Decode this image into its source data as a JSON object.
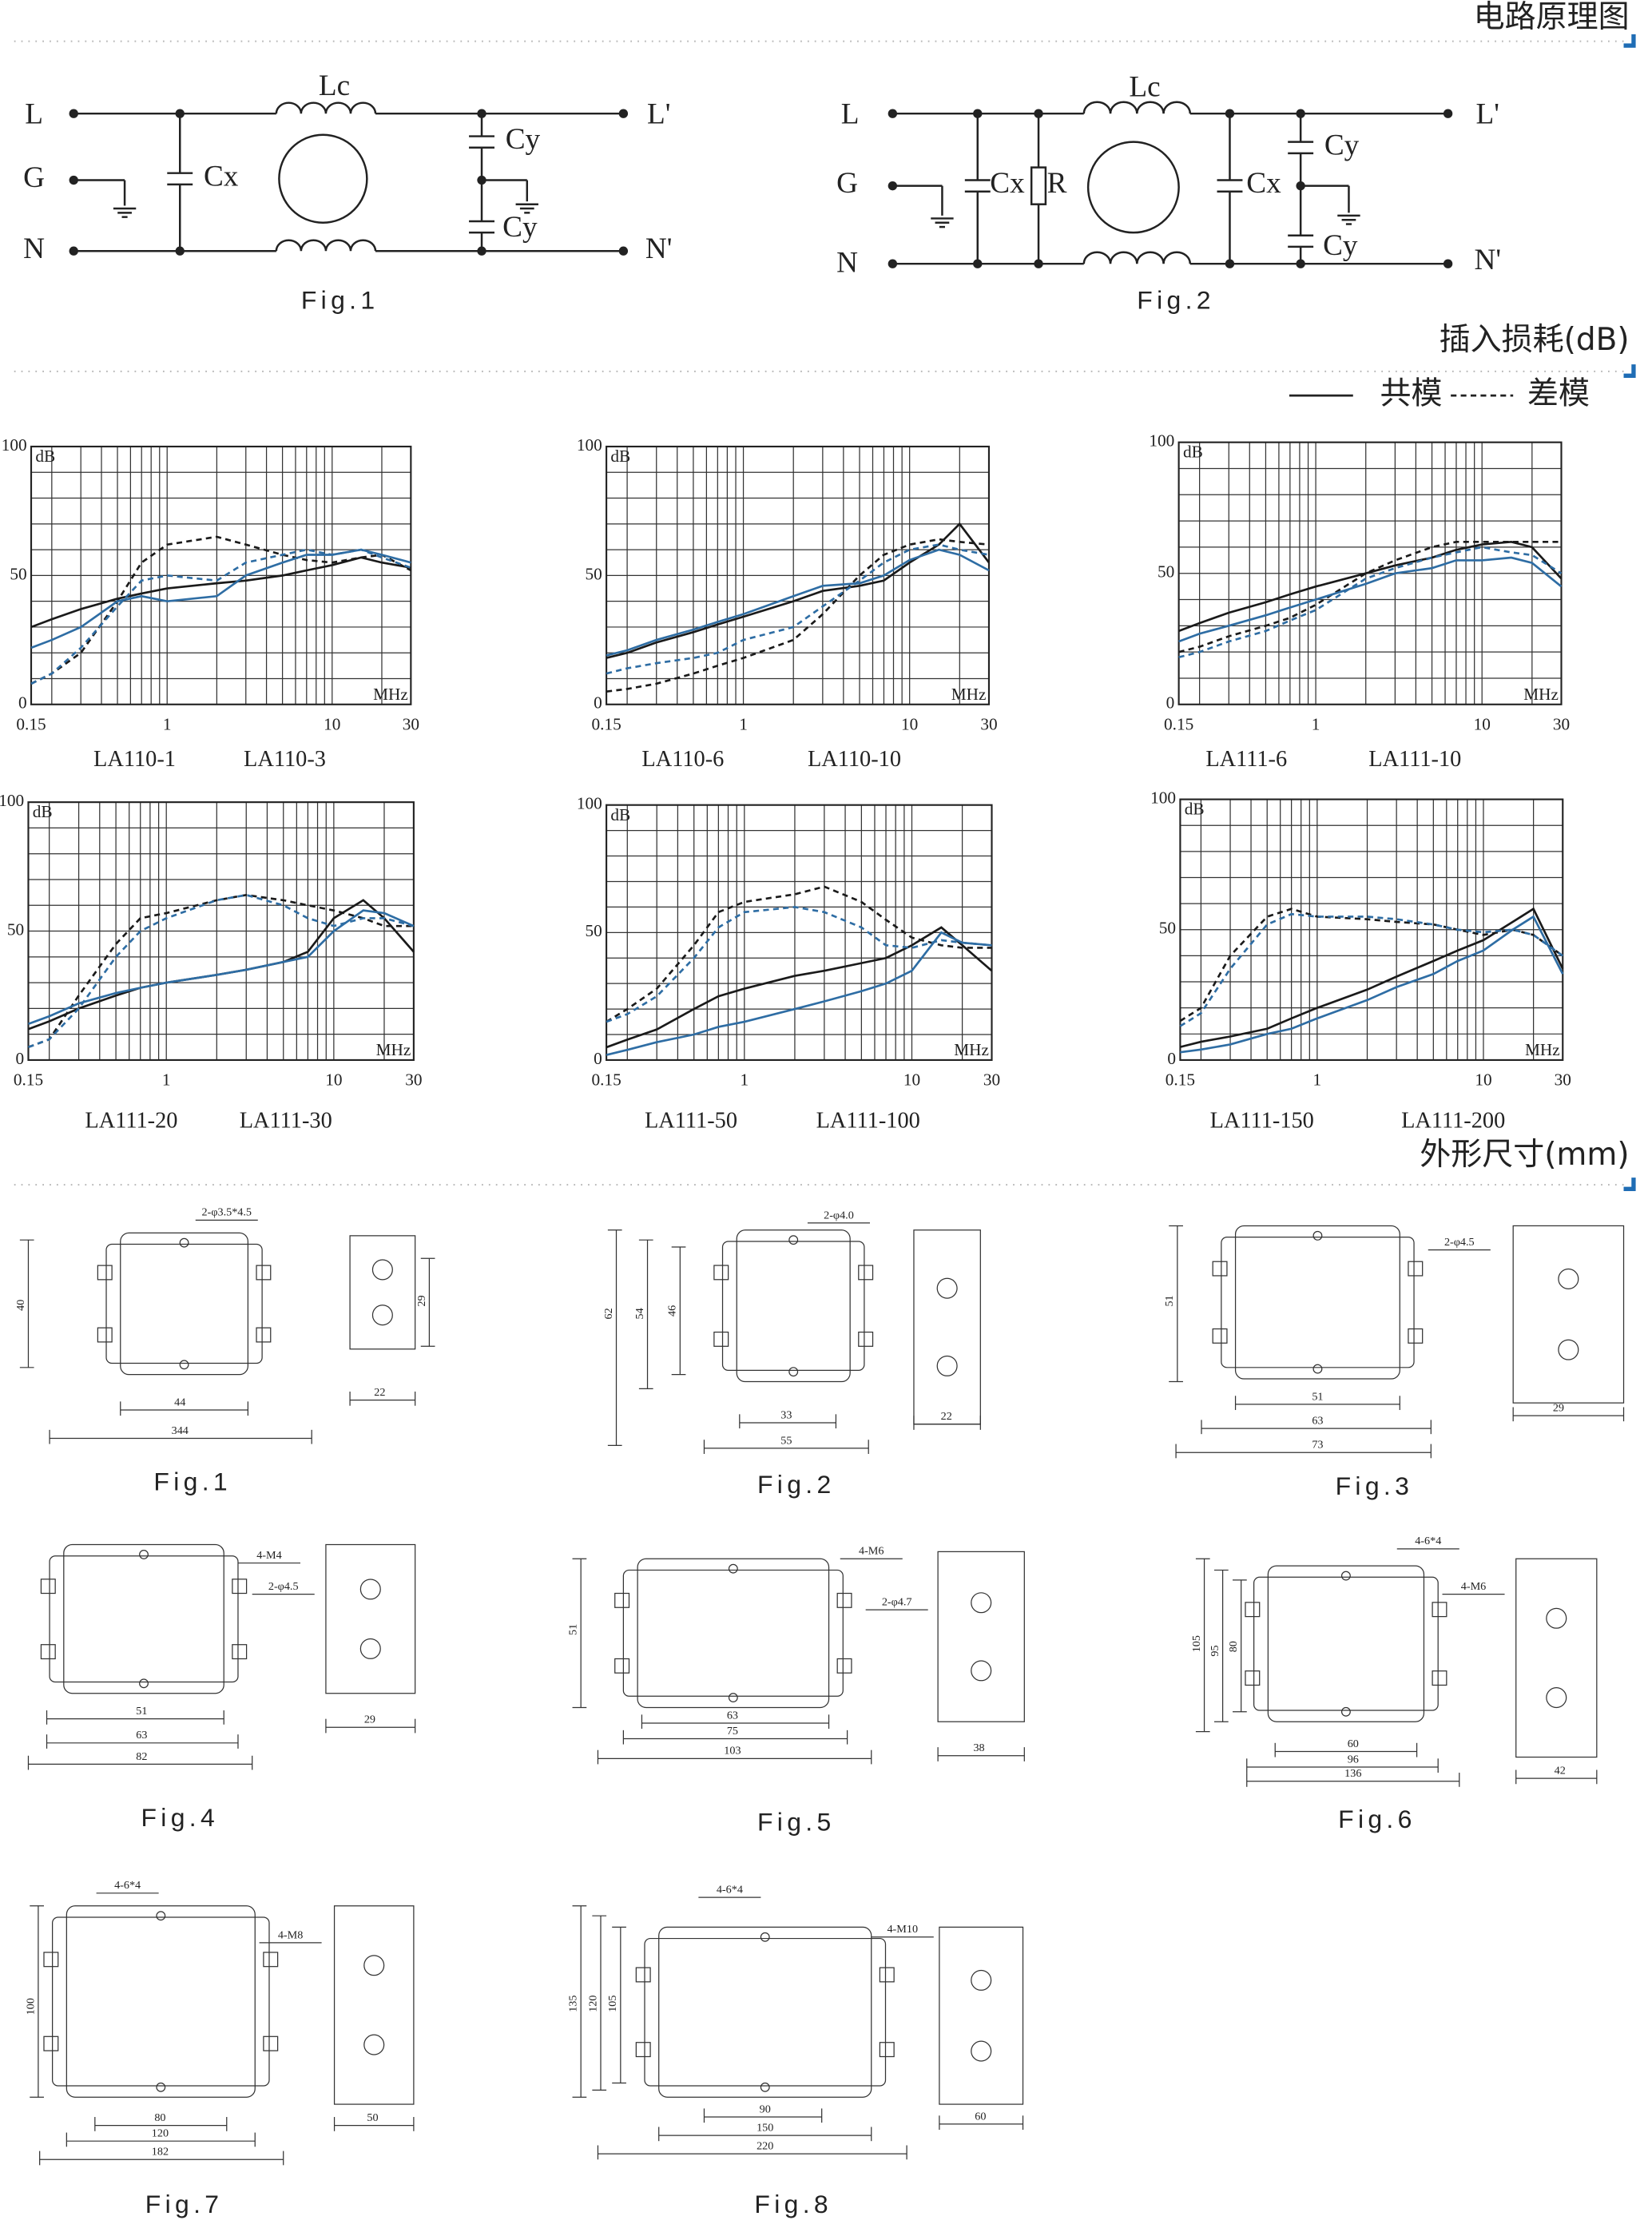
{
  "sections": {
    "circuit": "电路原理图",
    "insertion_loss": "插入损耗(dB)",
    "dimensions": "外形尺寸(mm)"
  },
  "legend": {
    "common_mode": "共模",
    "differential_mode": "差模"
  },
  "circuits": [
    {
      "caption": "Fig.1",
      "labels": [
        "L",
        "G",
        "N",
        "L'",
        "N'",
        "Lc",
        "Cx",
        "Cy",
        "Cy"
      ]
    },
    {
      "caption": "Fig.2",
      "labels": [
        "L",
        "G",
        "N",
        "L'",
        "N'",
        "Lc",
        "Cx",
        "R",
        "Cx",
        "Cy",
        "Cy"
      ]
    }
  ],
  "chart_data": [
    {
      "type": "line",
      "x_scale": "log",
      "y_label": "dB",
      "x_label": "MHz",
      "xlim": [
        0.15,
        30
      ],
      "ylim": [
        0,
        100
      ],
      "xticks": [
        0.15,
        1,
        10,
        30
      ],
      "yticks": [
        0,
        50,
        100
      ],
      "grid": true,
      "x": [
        0.15,
        0.2,
        0.3,
        0.5,
        0.7,
        1,
        2,
        3,
        5,
        7,
        10,
        15,
        20,
        30
      ],
      "series": [
        {
          "name": "LA110-1",
          "color": "#1a1a1a",
          "dashed": false,
          "values": [
            30,
            33,
            37,
            41,
            43,
            45,
            47,
            48,
            50,
            52,
            54,
            57,
            55,
            53
          ]
        },
        {
          "name": "LA110-1",
          "color": "#1a1a1a",
          "dashed": true,
          "values": [
            8,
            12,
            20,
            40,
            55,
            62,
            65,
            62,
            58,
            56,
            55,
            57,
            58,
            52
          ]
        },
        {
          "name": "LA110-3",
          "color": "#2e6da4",
          "dashed": false,
          "values": [
            22,
            25,
            30,
            40,
            42,
            40,
            42,
            50,
            55,
            58,
            58,
            60,
            58,
            55
          ]
        },
        {
          "name": "LA110-3",
          "color": "#2e6da4",
          "dashed": true,
          "values": [
            8,
            12,
            22,
            38,
            48,
            50,
            48,
            55,
            58,
            60,
            58,
            60,
            57,
            53
          ]
        }
      ]
    },
    {
      "type": "line",
      "x_scale": "log",
      "y_label": "dB",
      "x_label": "MHz",
      "xlim": [
        0.15,
        30
      ],
      "ylim": [
        0,
        100
      ],
      "xticks": [
        0.15,
        1,
        10,
        30
      ],
      "yticks": [
        0,
        50,
        100
      ],
      "grid": true,
      "x": [
        0.15,
        0.2,
        0.3,
        0.5,
        0.7,
        1,
        2,
        3,
        5,
        7,
        10,
        15,
        20,
        30
      ],
      "series": [
        {
          "name": "LA110-6",
          "color": "#1a1a1a",
          "dashed": false,
          "values": [
            18,
            20,
            24,
            28,
            31,
            34,
            40,
            44,
            46,
            48,
            55,
            62,
            70,
            55
          ]
        },
        {
          "name": "LA110-6",
          "color": "#1a1a1a",
          "dashed": true,
          "values": [
            5,
            6,
            8,
            12,
            15,
            18,
            25,
            35,
            50,
            58,
            62,
            64,
            63,
            62
          ]
        },
        {
          "name": "LA110-10",
          "color": "#2e6da4",
          "dashed": false,
          "values": [
            19,
            21,
            25,
            29,
            32,
            35,
            42,
            46,
            47,
            50,
            56,
            60,
            58,
            52
          ]
        },
        {
          "name": "LA110-10",
          "color": "#2e6da4",
          "dashed": true,
          "values": [
            12,
            14,
            16,
            18,
            20,
            25,
            30,
            38,
            48,
            55,
            60,
            62,
            60,
            58
          ]
        }
      ]
    },
    {
      "type": "line",
      "x_scale": "log",
      "y_label": "dB",
      "x_label": "MHz",
      "xlim": [
        0.15,
        30
      ],
      "ylim": [
        0,
        100
      ],
      "xticks": [
        0.15,
        1,
        10,
        30
      ],
      "yticks": [
        0,
        50,
        100
      ],
      "grid": true,
      "x": [
        0.15,
        0.2,
        0.3,
        0.5,
        0.7,
        1,
        2,
        3,
        5,
        7,
        10,
        15,
        20,
        30
      ],
      "series": [
        {
          "name": "LA111-6",
          "color": "#1a1a1a",
          "dashed": false,
          "values": [
            28,
            31,
            35,
            39,
            42,
            45,
            50,
            53,
            56,
            59,
            61,
            62,
            60,
            48
          ]
        },
        {
          "name": "LA111-6",
          "color": "#1a1a1a",
          "dashed": true,
          "values": [
            20,
            22,
            26,
            30,
            33,
            38,
            50,
            55,
            60,
            62,
            62,
            62,
            62,
            62
          ]
        },
        {
          "name": "LA111-10",
          "color": "#2e6da4",
          "dashed": false,
          "values": [
            24,
            27,
            30,
            34,
            37,
            40,
            46,
            50,
            52,
            55,
            55,
            56,
            54,
            45
          ]
        },
        {
          "name": "LA111-10",
          "color": "#2e6da4",
          "dashed": true,
          "values": [
            18,
            20,
            24,
            28,
            32,
            36,
            48,
            52,
            56,
            58,
            60,
            58,
            57,
            50
          ]
        }
      ]
    },
    {
      "type": "line",
      "x_scale": "log",
      "y_label": "dB",
      "x_label": "MHz",
      "xlim": [
        0.15,
        30
      ],
      "ylim": [
        0,
        100
      ],
      "xticks": [
        0.15,
        1,
        10,
        30
      ],
      "yticks": [
        0,
        50,
        100
      ],
      "grid": true,
      "x": [
        0.15,
        0.2,
        0.3,
        0.5,
        0.7,
        1,
        2,
        3,
        5,
        7,
        10,
        15,
        20,
        30
      ],
      "series": [
        {
          "name": "LA111-20",
          "color": "#1a1a1a",
          "dashed": false,
          "values": [
            12,
            15,
            20,
            25,
            28,
            30,
            33,
            35,
            38,
            42,
            55,
            62,
            55,
            42
          ]
        },
        {
          "name": "LA111-20",
          "color": "#1a1a1a",
          "dashed": true,
          "values": [
            5,
            8,
            25,
            45,
            55,
            57,
            62,
            64,
            62,
            60,
            58,
            55,
            52,
            52
          ]
        },
        {
          "name": "LA111-30",
          "color": "#2e6da4",
          "dashed": false,
          "values": [
            14,
            17,
            22,
            26,
            28,
            30,
            33,
            35,
            38,
            40,
            50,
            58,
            57,
            52
          ]
        },
        {
          "name": "LA111-30",
          "color": "#2e6da4",
          "dashed": true,
          "values": [
            5,
            8,
            20,
            40,
            50,
            55,
            62,
            64,
            60,
            55,
            52,
            55,
            55,
            52
          ]
        }
      ]
    },
    {
      "type": "line",
      "x_scale": "log",
      "y_label": "dB",
      "x_label": "MHz",
      "xlim": [
        0.15,
        30
      ],
      "ylim": [
        0,
        100
      ],
      "xticks": [
        0.15,
        1,
        10,
        30
      ],
      "yticks": [
        0,
        50,
        100
      ],
      "grid": true,
      "x": [
        0.15,
        0.2,
        0.3,
        0.5,
        0.7,
        1,
        2,
        3,
        5,
        7,
        10,
        15,
        20,
        30
      ],
      "series": [
        {
          "name": "LA111-50",
          "color": "#1a1a1a",
          "dashed": false,
          "values": [
            5,
            8,
            12,
            20,
            25,
            28,
            33,
            35,
            38,
            40,
            45,
            52,
            45,
            35
          ]
        },
        {
          "name": "LA111-50",
          "color": "#1a1a1a",
          "dashed": true,
          "values": [
            15,
            20,
            28,
            45,
            58,
            62,
            65,
            68,
            62,
            55,
            48,
            45,
            44,
            44
          ]
        },
        {
          "name": "LA111-100",
          "color": "#2e6da4",
          "dashed": false,
          "values": [
            2,
            4,
            7,
            10,
            13,
            15,
            20,
            23,
            27,
            30,
            35,
            50,
            46,
            45
          ]
        },
        {
          "name": "LA111-100",
          "color": "#2e6da4",
          "dashed": true,
          "values": [
            15,
            18,
            25,
            40,
            52,
            58,
            60,
            58,
            52,
            45,
            44,
            47,
            46,
            45
          ]
        }
      ]
    },
    {
      "type": "line",
      "x_scale": "log",
      "y_label": "dB",
      "x_label": "MHz",
      "xlim": [
        0.15,
        30
      ],
      "ylim": [
        0,
        100
      ],
      "xticks": [
        0.15,
        1,
        10,
        30
      ],
      "yticks": [
        0,
        50,
        100
      ],
      "grid": true,
      "x": [
        0.15,
        0.2,
        0.3,
        0.5,
        0.7,
        1,
        2,
        3,
        5,
        7,
        10,
        15,
        20,
        30
      ],
      "series": [
        {
          "name": "LA111-150",
          "color": "#1a1a1a",
          "dashed": false,
          "values": [
            5,
            7,
            9,
            12,
            16,
            20,
            27,
            32,
            38,
            42,
            46,
            53,
            58,
            35
          ]
        },
        {
          "name": "LA111-150",
          "color": "#1a1a1a",
          "dashed": true,
          "values": [
            15,
            20,
            40,
            55,
            58,
            55,
            54,
            53,
            52,
            50,
            48,
            50,
            48,
            40
          ]
        },
        {
          "name": "LA111-200",
          "color": "#2e6da4",
          "dashed": false,
          "values": [
            3,
            4,
            6,
            10,
            12,
            16,
            23,
            28,
            33,
            38,
            42,
            50,
            55,
            33
          ]
        },
        {
          "name": "LA111-200",
          "color": "#2e6da4",
          "dashed": true,
          "values": [
            13,
            18,
            35,
            52,
            56,
            55,
            55,
            54,
            52,
            50,
            49,
            50,
            48,
            40
          ]
        }
      ]
    }
  ],
  "dimension_figures": [
    {
      "caption": "Fig.1",
      "labels": [
        "2-φ3.5*4.5",
        "40",
        "29",
        "44",
        "22",
        "344"
      ]
    },
    {
      "caption": "Fig.2",
      "labels": [
        "2-φ4.0",
        "62",
        "54",
        "46",
        "33",
        "55",
        "22"
      ]
    },
    {
      "caption": "Fig.3",
      "labels": [
        "2-φ4.5",
        "51",
        "51",
        "63",
        "73",
        "29"
      ]
    },
    {
      "caption": "Fig.4",
      "labels": [
        "4-M4",
        "2-φ4.5",
        "51",
        "63",
        "82",
        "29"
      ]
    },
    {
      "caption": "Fig.5",
      "labels": [
        "4-M6",
        "2-φ4.7",
        "51",
        "63",
        "75",
        "103",
        "38"
      ]
    },
    {
      "caption": "Fig.6",
      "labels": [
        "4-6*4",
        "4-M6",
        "105",
        "95",
        "80",
        "60",
        "96",
        "136",
        "42"
      ]
    },
    {
      "caption": "Fig.7",
      "labels": [
        "4-6*4",
        "4-M8",
        "100",
        "80",
        "120",
        "182",
        "50"
      ]
    },
    {
      "caption": "Fig.8",
      "labels": [
        "4-6*4",
        "4-M10",
        "135",
        "120",
        "105",
        "90",
        "150",
        "220",
        "60"
      ]
    }
  ]
}
